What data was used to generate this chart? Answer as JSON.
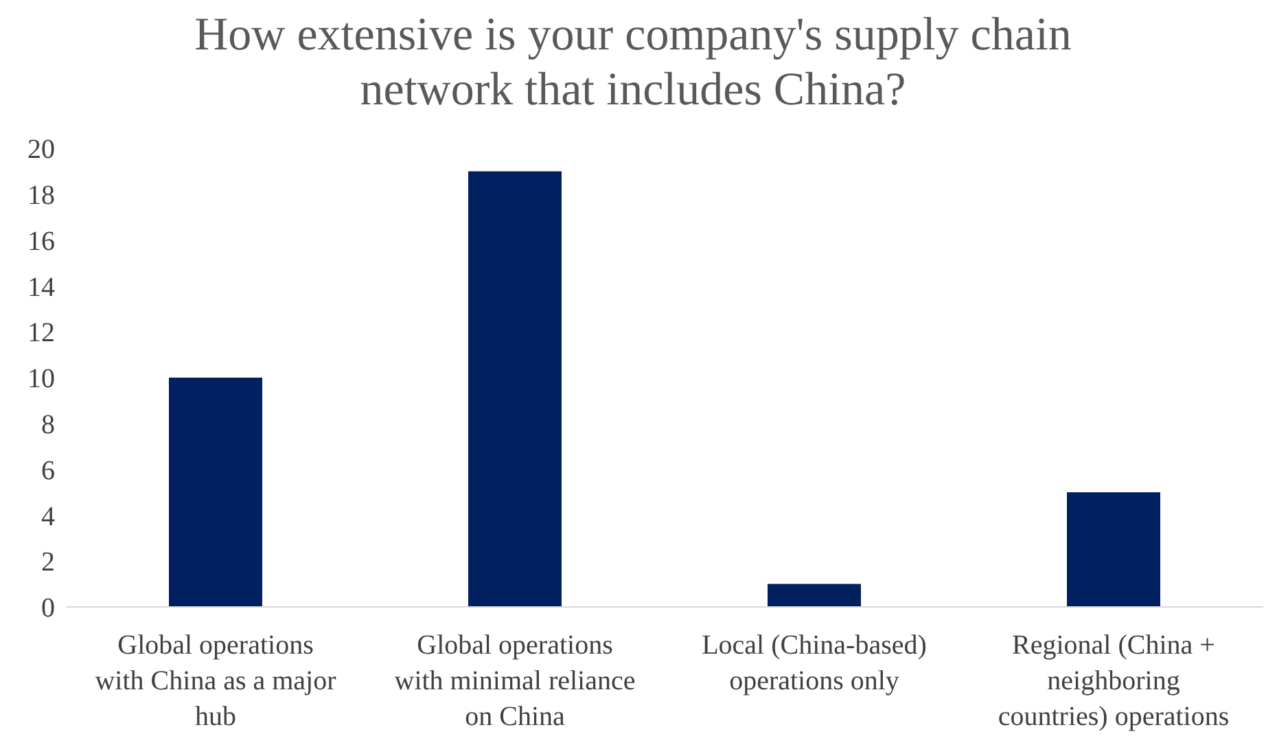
{
  "chart_data": {
    "type": "bar",
    "title": "How extensive is your company's supply chain network that includes China?",
    "categories": [
      "Global operations with China as a major hub",
      "Global operations with minimal reliance on China",
      "Local (China-based) operations only",
      "Regional (China + neighboring countries) operations"
    ],
    "values": [
      10,
      19,
      1,
      5
    ],
    "color": "#002060",
    "ylim": [
      0,
      20
    ],
    "yticks": [
      0,
      2,
      4,
      6,
      8,
      10,
      12,
      14,
      16,
      18,
      20
    ],
    "grid": false,
    "legend": false
  }
}
